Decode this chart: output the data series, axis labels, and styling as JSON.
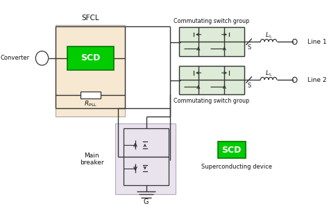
{
  "bg_color": "#ffffff",
  "sfcl_box_color": "#f5dfc0",
  "switch_box_color": "#d8e8d0",
  "breaker_box_color": "#e0d8e8",
  "scd_fill": "#00cc00",
  "line_color": "#333333",
  "text_color": "#111111",
  "sfcl_label": "SFCL",
  "scd_label": "SCD",
  "rpll_label": "$R_\\mathrm{PLL}$",
  "converter_label": "Converter",
  "comm_label": "Commutating switch group",
  "main_breaker_label": "Main\nbreaker",
  "ground_label": "G",
  "line1_label": "Line 1",
  "line2_label": "Line 2",
  "ll_label": "$L_\\mathrm{L}$",
  "s_label": "S",
  "supercon_label": "Superconducting device"
}
